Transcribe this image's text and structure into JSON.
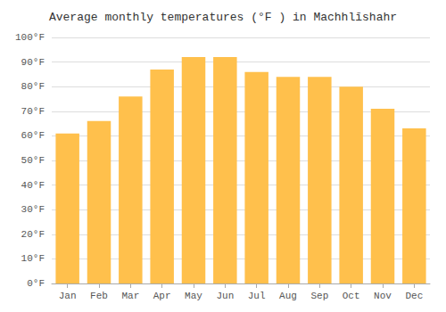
{
  "chart_data": {
    "type": "bar",
    "title": "Average monthly temperatures (°F ) in Machhlīshahr",
    "categories": [
      "Jan",
      "Feb",
      "Mar",
      "Apr",
      "May",
      "Jun",
      "Jul",
      "Aug",
      "Sep",
      "Oct",
      "Nov",
      "Dec"
    ],
    "values": [
      61,
      66,
      76,
      87,
      92,
      92,
      86,
      84,
      84,
      80,
      71,
      63
    ],
    "color": "#FFC04C",
    "ylim": [
      0,
      100
    ],
    "yticks": [
      {
        "value": 0,
        "label": "0°F"
      },
      {
        "value": 10,
        "label": "10°F"
      },
      {
        "value": 20,
        "label": "20°F"
      },
      {
        "value": 30,
        "label": "30°F"
      },
      {
        "value": 40,
        "label": "40°F"
      },
      {
        "value": 50,
        "label": "50°F"
      },
      {
        "value": 60,
        "label": "60°F"
      },
      {
        "value": 70,
        "label": "70°F"
      },
      {
        "value": 80,
        "label": "80°F"
      },
      {
        "value": 90,
        "label": "90°F"
      },
      {
        "value": 100,
        "label": "100°F"
      }
    ],
    "grid": true
  }
}
